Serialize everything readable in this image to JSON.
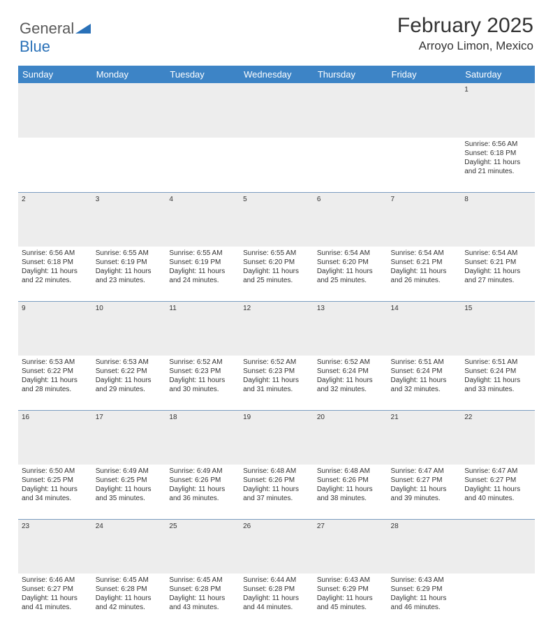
{
  "logo": {
    "general": "General",
    "blue": "Blue"
  },
  "title": "February 2025",
  "location": "Arroyo Limon, Mexico",
  "colors": {
    "header_bg": "#3d84c6",
    "header_text": "#ffffff",
    "daynum_bg": "#ededed",
    "row_border": "#7a9cc0",
    "text": "#333333",
    "logo_gray": "#5a5a5a",
    "logo_blue": "#2a71b8"
  },
  "weekdays": [
    "Sunday",
    "Monday",
    "Tuesday",
    "Wednesday",
    "Thursday",
    "Friday",
    "Saturday"
  ],
  "weeks": [
    [
      null,
      null,
      null,
      null,
      null,
      null,
      {
        "day": "1",
        "sunrise": "Sunrise: 6:56 AM",
        "sunset": "Sunset: 6:18 PM",
        "daylight": "Daylight: 11 hours and 21 minutes."
      }
    ],
    [
      {
        "day": "2",
        "sunrise": "Sunrise: 6:56 AM",
        "sunset": "Sunset: 6:18 PM",
        "daylight": "Daylight: 11 hours and 22 minutes."
      },
      {
        "day": "3",
        "sunrise": "Sunrise: 6:55 AM",
        "sunset": "Sunset: 6:19 PM",
        "daylight": "Daylight: 11 hours and 23 minutes."
      },
      {
        "day": "4",
        "sunrise": "Sunrise: 6:55 AM",
        "sunset": "Sunset: 6:19 PM",
        "daylight": "Daylight: 11 hours and 24 minutes."
      },
      {
        "day": "5",
        "sunrise": "Sunrise: 6:55 AM",
        "sunset": "Sunset: 6:20 PM",
        "daylight": "Daylight: 11 hours and 25 minutes."
      },
      {
        "day": "6",
        "sunrise": "Sunrise: 6:54 AM",
        "sunset": "Sunset: 6:20 PM",
        "daylight": "Daylight: 11 hours and 25 minutes."
      },
      {
        "day": "7",
        "sunrise": "Sunrise: 6:54 AM",
        "sunset": "Sunset: 6:21 PM",
        "daylight": "Daylight: 11 hours and 26 minutes."
      },
      {
        "day": "8",
        "sunrise": "Sunrise: 6:54 AM",
        "sunset": "Sunset: 6:21 PM",
        "daylight": "Daylight: 11 hours and 27 minutes."
      }
    ],
    [
      {
        "day": "9",
        "sunrise": "Sunrise: 6:53 AM",
        "sunset": "Sunset: 6:22 PM",
        "daylight": "Daylight: 11 hours and 28 minutes."
      },
      {
        "day": "10",
        "sunrise": "Sunrise: 6:53 AM",
        "sunset": "Sunset: 6:22 PM",
        "daylight": "Daylight: 11 hours and 29 minutes."
      },
      {
        "day": "11",
        "sunrise": "Sunrise: 6:52 AM",
        "sunset": "Sunset: 6:23 PM",
        "daylight": "Daylight: 11 hours and 30 minutes."
      },
      {
        "day": "12",
        "sunrise": "Sunrise: 6:52 AM",
        "sunset": "Sunset: 6:23 PM",
        "daylight": "Daylight: 11 hours and 31 minutes."
      },
      {
        "day": "13",
        "sunrise": "Sunrise: 6:52 AM",
        "sunset": "Sunset: 6:24 PM",
        "daylight": "Daylight: 11 hours and 32 minutes."
      },
      {
        "day": "14",
        "sunrise": "Sunrise: 6:51 AM",
        "sunset": "Sunset: 6:24 PM",
        "daylight": "Daylight: 11 hours and 32 minutes."
      },
      {
        "day": "15",
        "sunrise": "Sunrise: 6:51 AM",
        "sunset": "Sunset: 6:24 PM",
        "daylight": "Daylight: 11 hours and 33 minutes."
      }
    ],
    [
      {
        "day": "16",
        "sunrise": "Sunrise: 6:50 AM",
        "sunset": "Sunset: 6:25 PM",
        "daylight": "Daylight: 11 hours and 34 minutes."
      },
      {
        "day": "17",
        "sunrise": "Sunrise: 6:49 AM",
        "sunset": "Sunset: 6:25 PM",
        "daylight": "Daylight: 11 hours and 35 minutes."
      },
      {
        "day": "18",
        "sunrise": "Sunrise: 6:49 AM",
        "sunset": "Sunset: 6:26 PM",
        "daylight": "Daylight: 11 hours and 36 minutes."
      },
      {
        "day": "19",
        "sunrise": "Sunrise: 6:48 AM",
        "sunset": "Sunset: 6:26 PM",
        "daylight": "Daylight: 11 hours and 37 minutes."
      },
      {
        "day": "20",
        "sunrise": "Sunrise: 6:48 AM",
        "sunset": "Sunset: 6:26 PM",
        "daylight": "Daylight: 11 hours and 38 minutes."
      },
      {
        "day": "21",
        "sunrise": "Sunrise: 6:47 AM",
        "sunset": "Sunset: 6:27 PM",
        "daylight": "Daylight: 11 hours and 39 minutes."
      },
      {
        "day": "22",
        "sunrise": "Sunrise: 6:47 AM",
        "sunset": "Sunset: 6:27 PM",
        "daylight": "Daylight: 11 hours and 40 minutes."
      }
    ],
    [
      {
        "day": "23",
        "sunrise": "Sunrise: 6:46 AM",
        "sunset": "Sunset: 6:27 PM",
        "daylight": "Daylight: 11 hours and 41 minutes."
      },
      {
        "day": "24",
        "sunrise": "Sunrise: 6:45 AM",
        "sunset": "Sunset: 6:28 PM",
        "daylight": "Daylight: 11 hours and 42 minutes."
      },
      {
        "day": "25",
        "sunrise": "Sunrise: 6:45 AM",
        "sunset": "Sunset: 6:28 PM",
        "daylight": "Daylight: 11 hours and 43 minutes."
      },
      {
        "day": "26",
        "sunrise": "Sunrise: 6:44 AM",
        "sunset": "Sunset: 6:28 PM",
        "daylight": "Daylight: 11 hours and 44 minutes."
      },
      {
        "day": "27",
        "sunrise": "Sunrise: 6:43 AM",
        "sunset": "Sunset: 6:29 PM",
        "daylight": "Daylight: 11 hours and 45 minutes."
      },
      {
        "day": "28",
        "sunrise": "Sunrise: 6:43 AM",
        "sunset": "Sunset: 6:29 PM",
        "daylight": "Daylight: 11 hours and 46 minutes."
      },
      null
    ]
  ]
}
